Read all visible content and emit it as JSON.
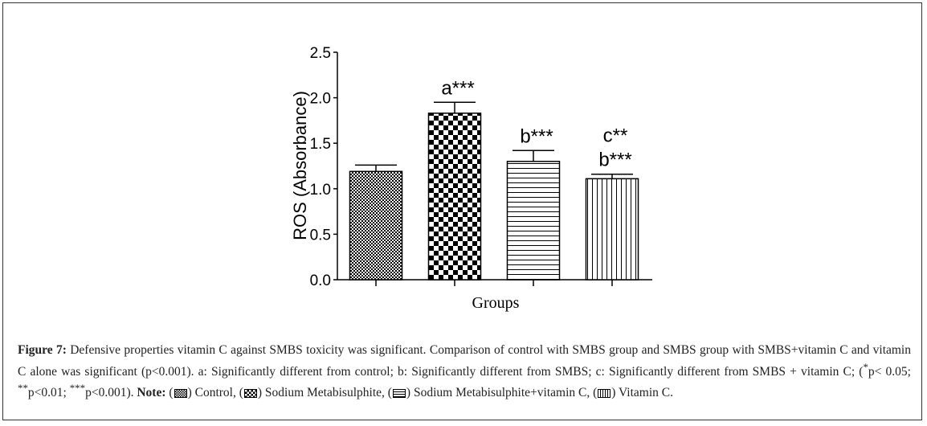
{
  "chart_data": {
    "type": "bar",
    "title": "",
    "xlabel": "Groups",
    "ylabel": "ROS (Absorbance)",
    "ylim": [
      0,
      2.5
    ],
    "yticks": [
      "0.0",
      "0.5",
      "1.0",
      "1.5",
      "2.0",
      "2.5"
    ],
    "categories": [
      "Control",
      "Sodium Metabisulphite",
      "Sodium Metabisulphite+vitamin C",
      "Vitamin C"
    ],
    "values": [
      1.19,
      1.83,
      1.3,
      1.11
    ],
    "errors": [
      0.07,
      0.12,
      0.12,
      0.05
    ],
    "patterns": [
      "fine-checker",
      "coarse-checker",
      "horizontal-lines",
      "vertical-lines"
    ],
    "annotations": [
      [],
      [
        "a***"
      ],
      [
        "b***"
      ],
      [
        "c**",
        "b***"
      ]
    ],
    "grid": false
  },
  "caption": {
    "label": "Figure 7:",
    "text1": " Defensive properties vitamin C against SMBS toxicity was significant. Comparison of control with SMBS group and SMBS group with SMBS+vitamin C and vitamin C alone was significant (p<0.001). a: Significantly different from control; b: Significantly different from SMBS; c: Significantly different from SMBS + vitamin C; (",
    "s1": "*",
    "t2": "p< 0.05; ",
    "s2": "**",
    "t3": "p<0.01; ",
    "s3": "***",
    "t4": "p<0.001). ",
    "note": "Note:",
    "n1": " (",
    "l1": ") Control, (",
    "l2": ") Sodium Metabisulphite, (",
    "l3": ") Sodium Metabisulphite+vitamin C, (",
    "l4": ") Vitamin C."
  }
}
